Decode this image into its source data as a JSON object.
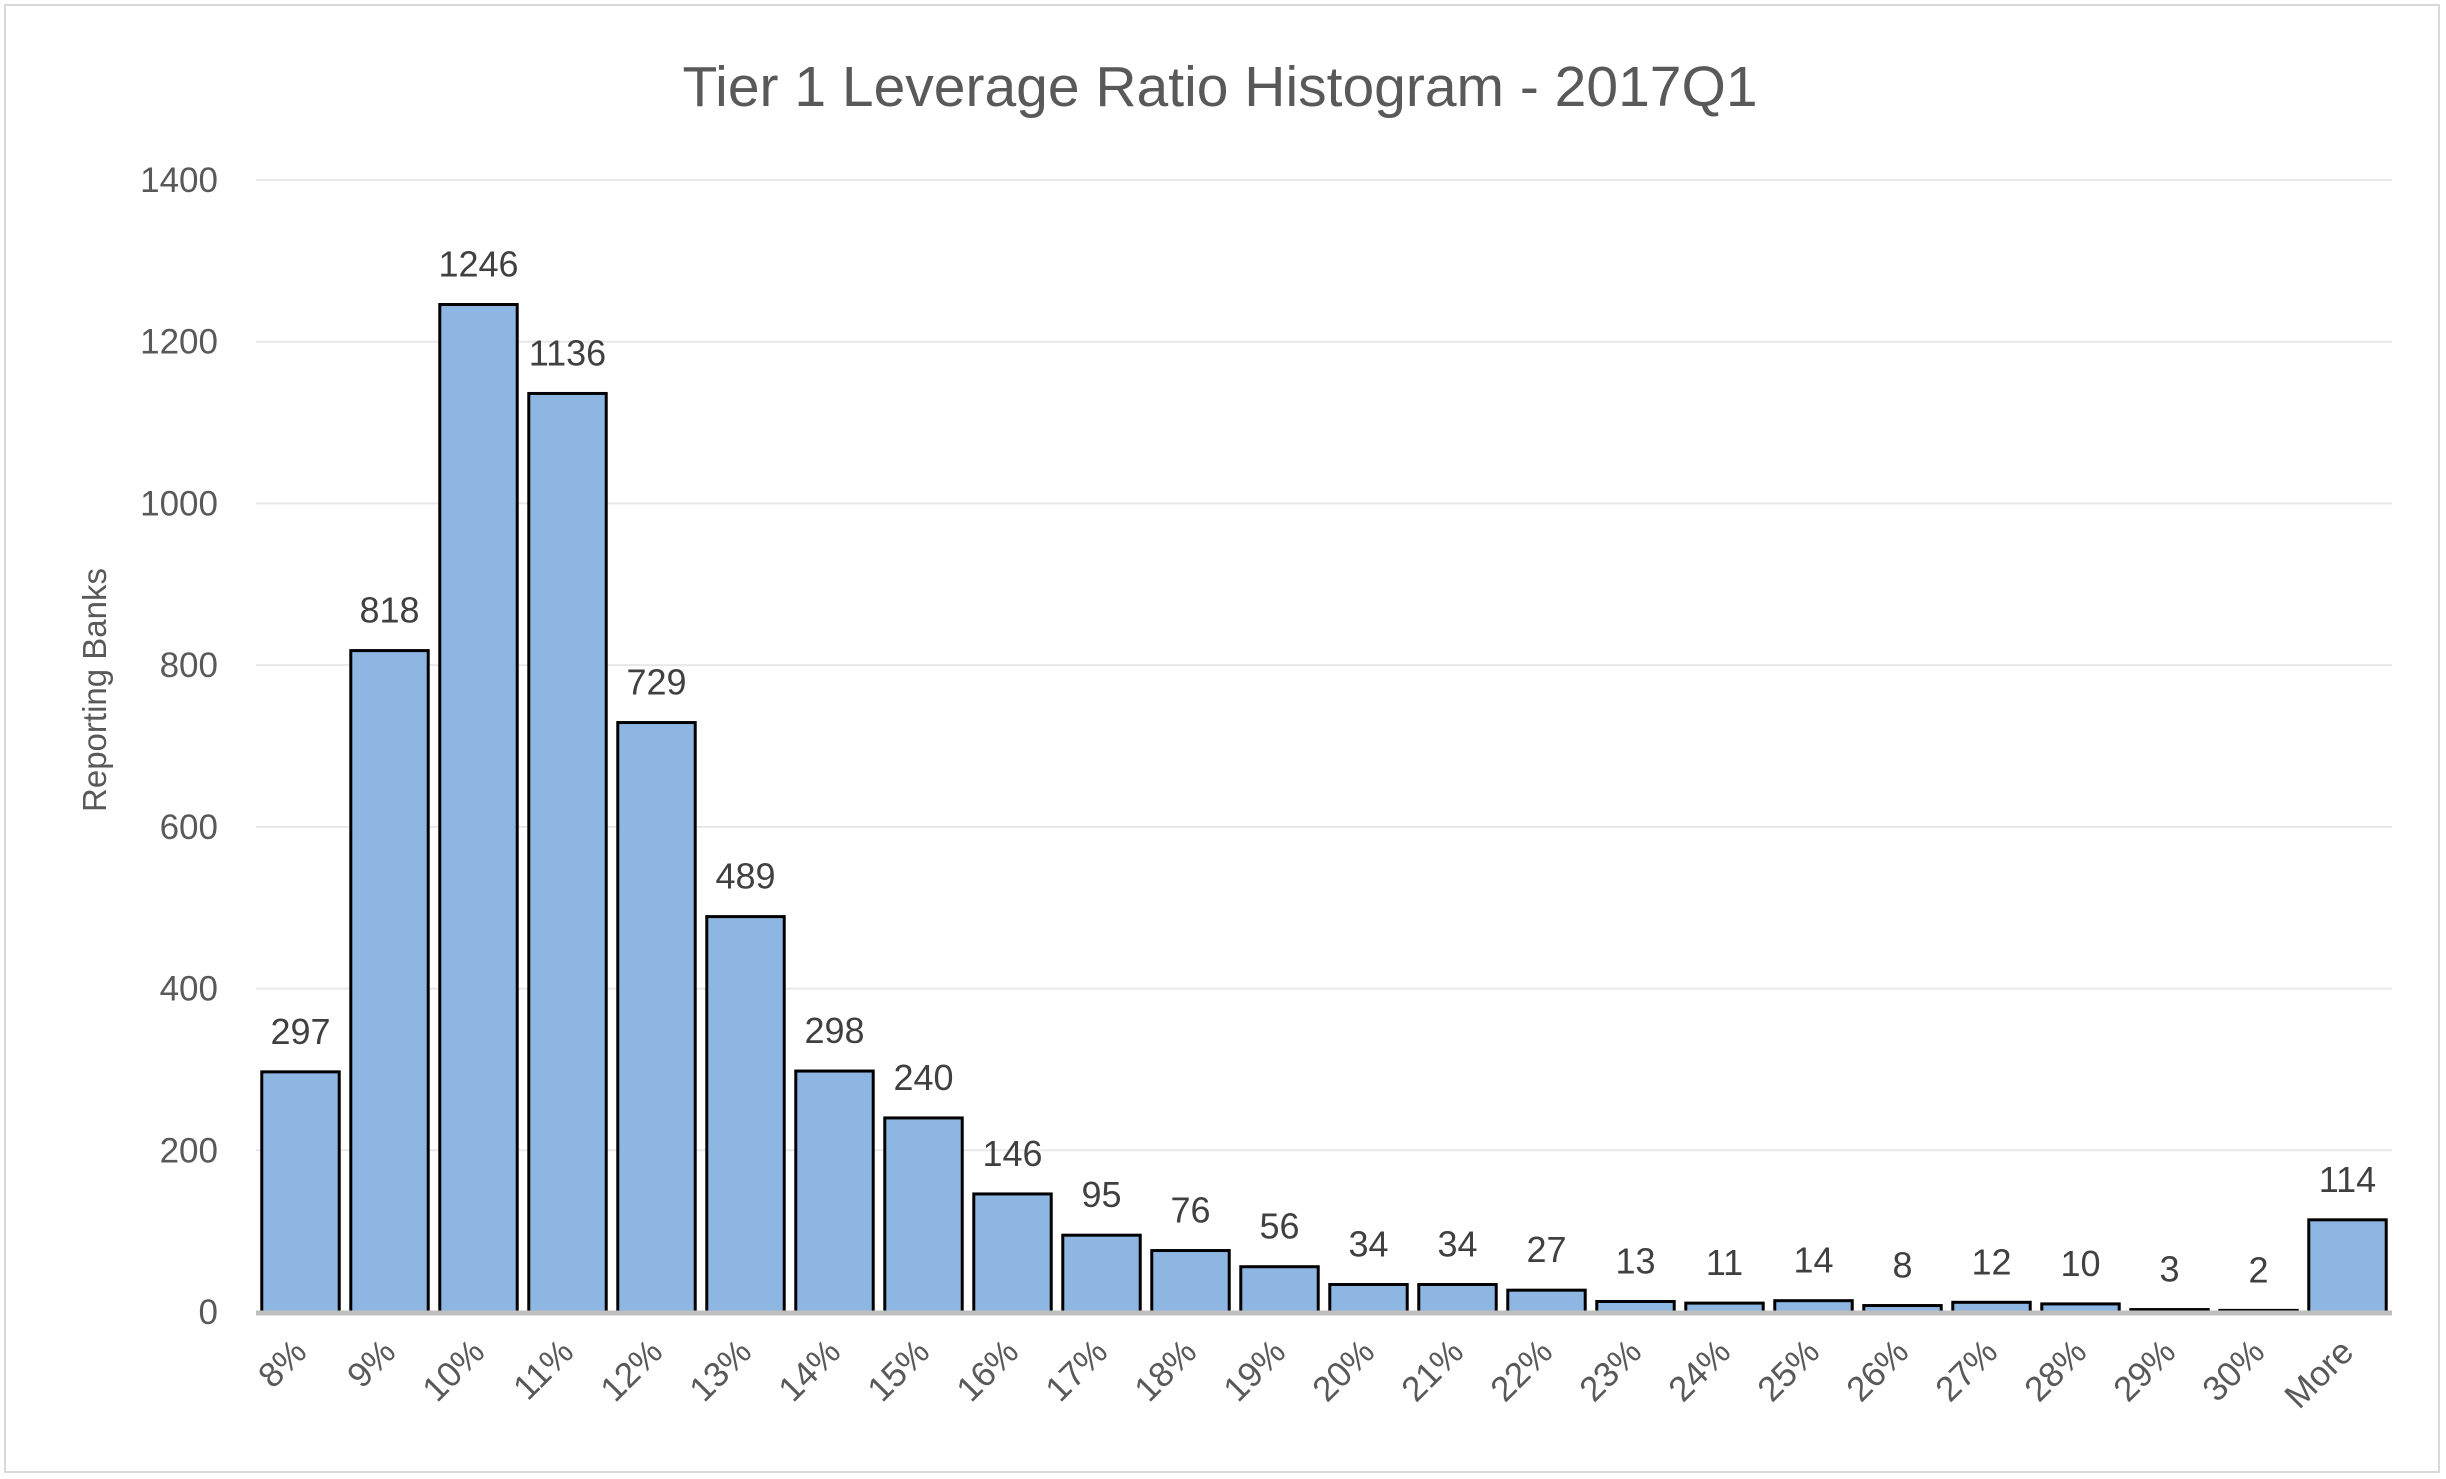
{
  "chart_data": {
    "type": "bar",
    "title": "Tier 1 Leverage Ratio Histogram - 2017Q1",
    "xlabel": "",
    "ylabel": "Reporting Banks",
    "ylim": [
      0,
      1400
    ],
    "yticks": [
      0,
      200,
      400,
      600,
      800,
      1000,
      1200,
      1400
    ],
    "grid": "horizontal",
    "legend": "none",
    "bar_color": "#8db7e2",
    "bar_edge_color": "#000000",
    "categories": [
      "8%",
      "9%",
      "10%",
      "11%",
      "12%",
      "13%",
      "14%",
      "15%",
      "16%",
      "17%",
      "18%",
      "19%",
      "20%",
      "21%",
      "22%",
      "23%",
      "24%",
      "25%",
      "26%",
      "27%",
      "28%",
      "29%",
      "30%",
      "More"
    ],
    "values": [
      297,
      818,
      1246,
      1136,
      729,
      489,
      298,
      240,
      146,
      95,
      76,
      56,
      34,
      34,
      27,
      13,
      11,
      14,
      8,
      12,
      10,
      3,
      2,
      114
    ]
  }
}
